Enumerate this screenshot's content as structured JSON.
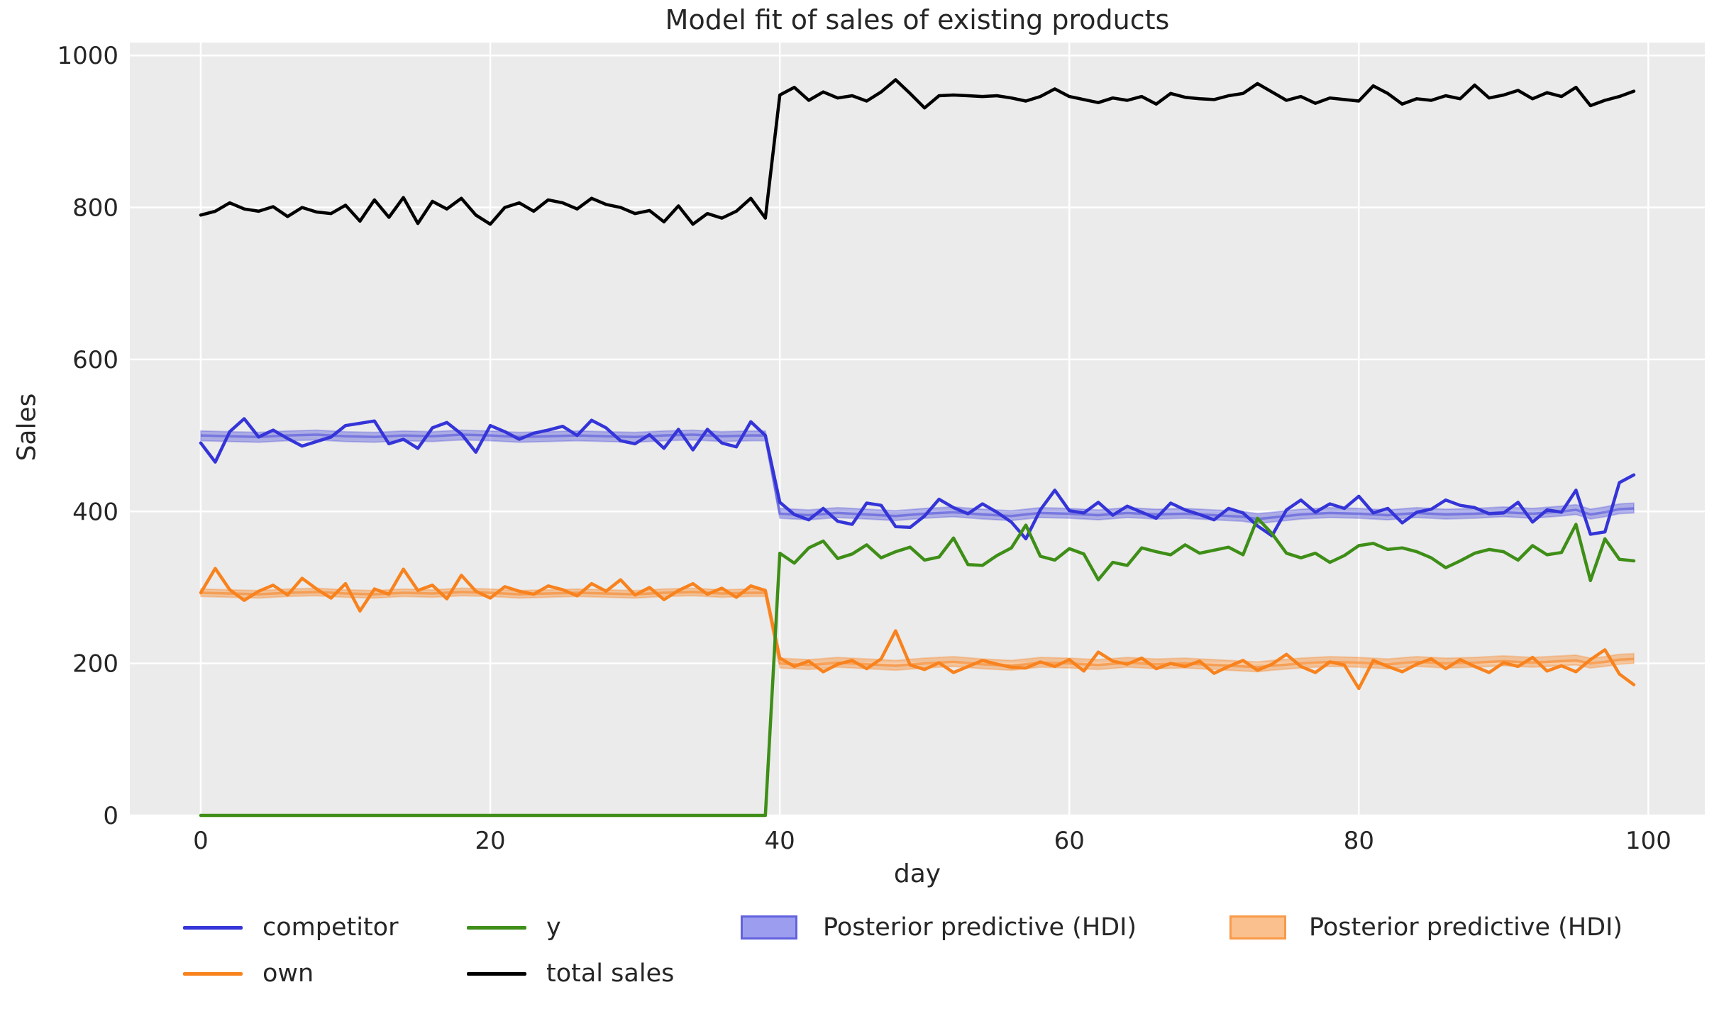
{
  "chart_data": {
    "type": "line",
    "title": "Model fit of sales of existing products",
    "xlabel": "day",
    "ylabel": "Sales",
    "xlim": [
      -4.9,
      103.9
    ],
    "ylim": [
      0,
      1017
    ],
    "xticks": [
      0,
      20,
      40,
      60,
      80,
      100
    ],
    "yticks": [
      0,
      200,
      400,
      600,
      800,
      1000
    ],
    "grid": true,
    "colors": {
      "axes_background": "#ebebeb",
      "gridline": "#ffffff"
    },
    "x_is_day_index": true,
    "series": [
      {
        "name": "competitor",
        "color": "#3434d8",
        "values": [
          490,
          465,
          505,
          522,
          498,
          507,
          496,
          486,
          492,
          498,
          513,
          516,
          519,
          489,
          495,
          483,
          510,
          517,
          502,
          478,
          513,
          505,
          495,
          503,
          507,
          512,
          500,
          520,
          510,
          493,
          489,
          501,
          483,
          508,
          481,
          508,
          490,
          485,
          518,
          500,
          412,
          396,
          389,
          404,
          387,
          383,
          411,
          408,
          380,
          379,
          394,
          416,
          405,
          397,
          410,
          399,
          386,
          364,
          402,
          428,
          401,
          398,
          412,
          395,
          407,
          399,
          391,
          411,
          402,
          396,
          389,
          404,
          398,
          381,
          368,
          402,
          415,
          399,
          410,
          404,
          420,
          398,
          404,
          385,
          399,
          403,
          415,
          408,
          405,
          397,
          398,
          412,
          386,
          402,
          399,
          428,
          370,
          373,
          438,
          448
        ]
      },
      {
        "name": "own",
        "color": "#f8821d",
        "values": [
          293,
          325,
          297,
          283,
          295,
          303,
          290,
          312,
          298,
          286,
          305,
          269,
          298,
          291,
          324,
          296,
          303,
          285,
          316,
          295,
          286,
          301,
          295,
          291,
          302,
          297,
          289,
          305,
          295,
          310,
          290,
          300,
          284,
          296,
          305,
          291,
          299,
          287,
          302,
          296,
          207,
          196,
          203,
          189,
          199,
          204,
          193,
          206,
          243,
          198,
          192,
          201,
          188,
          196,
          204,
          199,
          195,
          194,
          202,
          196,
          205,
          190,
          215,
          203,
          199,
          207,
          193,
          200,
          196,
          203,
          187,
          196,
          204,
          191,
          199,
          212,
          196,
          188,
          202,
          198,
          167,
          204,
          196,
          189,
          199,
          206,
          193,
          205,
          196,
          188,
          201,
          196,
          208,
          190,
          197,
          189,
          205,
          218,
          186,
          172
        ]
      },
      {
        "name": "y",
        "color": "#3e8e17",
        "values": [
          0,
          0,
          0,
          0,
          0,
          0,
          0,
          0,
          0,
          0,
          0,
          0,
          0,
          0,
          0,
          0,
          0,
          0,
          0,
          0,
          0,
          0,
          0,
          0,
          0,
          0,
          0,
          0,
          0,
          0,
          0,
          0,
          0,
          0,
          0,
          0,
          0,
          0,
          0,
          0,
          345,
          332,
          352,
          361,
          338,
          344,
          356,
          339,
          347,
          353,
          336,
          340,
          365,
          330,
          329,
          342,
          352,
          382,
          341,
          336,
          351,
          344,
          310,
          333,
          329,
          352,
          347,
          343,
          356,
          345,
          349,
          353,
          343,
          391,
          371,
          345,
          339,
          345,
          333,
          342,
          355,
          358,
          350,
          352,
          347,
          339,
          326,
          335,
          345,
          350,
          347,
          336,
          355,
          343,
          346,
          383,
          309,
          364,
          337,
          335
        ]
      },
      {
        "name": "total sales",
        "color": "#000000",
        "values": [
          790,
          795,
          806,
          798,
          795,
          801,
          788,
          800,
          794,
          792,
          803,
          782,
          810,
          787,
          813,
          779,
          808,
          798,
          812,
          790,
          778,
          800,
          806,
          795,
          810,
          806,
          798,
          812,
          804,
          800,
          792,
          796,
          781,
          802,
          778,
          792,
          786,
          795,
          812,
          786,
          948,
          958,
          941,
          952,
          944,
          947,
          940,
          952,
          968,
          950,
          931,
          947,
          948,
          947,
          946,
          947,
          944,
          940,
          946,
          956,
          946,
          942,
          938,
          944,
          941,
          946,
          936,
          950,
          945,
          943,
          942,
          947,
          950,
          963,
          952,
          941,
          946,
          937,
          944,
          942,
          940,
          960,
          950,
          936,
          943,
          941,
          947,
          943,
          961,
          944,
          948,
          954,
          943,
          951,
          946,
          958,
          934,
          941,
          946,
          953
        ]
      }
    ],
    "bands": [
      {
        "name": "Posterior predictive (HDI)",
        "color": "#4d4ddb",
        "days": [
          0,
          2,
          4,
          6,
          8,
          10,
          12,
          14,
          16,
          18,
          20,
          22,
          24,
          26,
          28,
          30,
          32,
          34,
          36,
          38,
          39,
          40,
          42,
          44,
          46,
          48,
          50,
          52,
          54,
          56,
          58,
          60,
          62,
          64,
          66,
          68,
          70,
          72,
          73,
          74,
          76,
          78,
          80,
          82,
          84,
          86,
          88,
          90,
          92,
          94,
          95,
          96,
          97,
          98,
          99
        ],
        "low": [
          493,
          492,
          491,
          493,
          494,
          492,
          491,
          493,
          492,
          494,
          493,
          491,
          492,
          493,
          492,
          491,
          493,
          494,
          492,
          493,
          493,
          391,
          389,
          392,
          390,
          388,
          391,
          393,
          390,
          388,
          392,
          391,
          389,
          392,
          390,
          391,
          389,
          387,
          384,
          386,
          390,
          392,
          391,
          389,
          392,
          390,
          391,
          393,
          391,
          394,
          396,
          390,
          393,
          397,
          398
        ],
        "high": [
          506,
          505,
          504,
          506,
          507,
          505,
          504,
          506,
          505,
          507,
          506,
          504,
          505,
          506,
          505,
          504,
          506,
          507,
          505,
          506,
          506,
          404,
          402,
          405,
          403,
          401,
          404,
          406,
          403,
          401,
          405,
          404,
          402,
          405,
          403,
          404,
          402,
          400,
          397,
          399,
          403,
          405,
          404,
          402,
          405,
          403,
          404,
          406,
          404,
          407,
          409,
          403,
          406,
          410,
          411
        ],
        "mean": [
          500,
          499,
          498,
          500,
          501,
          499,
          498,
          500,
          499,
          501,
          500,
          498,
          499,
          500,
          499,
          498,
          500,
          501,
          499,
          500,
          500,
          397,
          395,
          398,
          396,
          394,
          397,
          399,
          396,
          394,
          398,
          397,
          395,
          398,
          396,
          397,
          395,
          393,
          390,
          392,
          396,
          398,
          397,
          395,
          398,
          396,
          397,
          399,
          397,
          400,
          402,
          396,
          399,
          403,
          404
        ]
      },
      {
        "name": "Posterior predictive (HDI)",
        "color": "#f8821d",
        "days": [
          0,
          2,
          4,
          6,
          8,
          10,
          12,
          14,
          16,
          18,
          20,
          22,
          24,
          26,
          28,
          30,
          32,
          34,
          36,
          38,
          39,
          40,
          42,
          44,
          46,
          48,
          50,
          52,
          54,
          56,
          58,
          60,
          62,
          64,
          66,
          68,
          70,
          72,
          73,
          74,
          76,
          78,
          80,
          82,
          84,
          86,
          88,
          90,
          92,
          94,
          95,
          96,
          97,
          98,
          99
        ],
        "low": [
          288,
          287,
          286,
          288,
          289,
          287,
          286,
          288,
          287,
          289,
          288,
          286,
          287,
          288,
          287,
          286,
          288,
          289,
          287,
          288,
          288,
          194,
          192,
          195,
          193,
          191,
          194,
          196,
          193,
          191,
          195,
          194,
          192,
          195,
          193,
          194,
          192,
          190,
          189,
          191,
          194,
          196,
          195,
          193,
          196,
          194,
          195,
          197,
          195,
          197,
          198,
          194,
          196,
          199,
          200
        ],
        "high": [
          298,
          297,
          296,
          298,
          299,
          297,
          296,
          298,
          297,
          299,
          298,
          296,
          297,
          298,
          297,
          296,
          298,
          299,
          297,
          298,
          298,
          207,
          205,
          208,
          206,
          204,
          207,
          209,
          206,
          204,
          208,
          207,
          205,
          208,
          206,
          207,
          205,
          203,
          202,
          204,
          207,
          209,
          208,
          206,
          209,
          207,
          208,
          210,
          208,
          210,
          211,
          207,
          209,
          212,
          213
        ],
        "mean": [
          293,
          292,
          291,
          293,
          294,
          292,
          291,
          293,
          292,
          294,
          293,
          291,
          292,
          293,
          292,
          291,
          293,
          294,
          292,
          293,
          293,
          200,
          198,
          201,
          199,
          197,
          200,
          202,
          199,
          197,
          201,
          200,
          198,
          201,
          199,
          200,
          198,
          196,
          195,
          197,
          200,
          202,
          201,
          199,
          202,
          200,
          201,
          203,
          201,
          203,
          204,
          200,
          202,
          205,
          206
        ]
      }
    ]
  },
  "legend": {
    "items": [
      {
        "label": "competitor",
        "type": "line",
        "color": "#3434d8"
      },
      {
        "label": "own",
        "type": "line",
        "color": "#f8821d"
      },
      {
        "label": "y",
        "type": "line",
        "color": "#3e8e17"
      },
      {
        "label": "total sales",
        "type": "line",
        "color": "#000000"
      },
      {
        "label": "Posterior predictive (HDI)",
        "type": "patch",
        "color": "#9d9df0"
      },
      {
        "label": "Posterior predictive (HDI)",
        "type": "patch",
        "color": "#fac08d"
      }
    ]
  }
}
